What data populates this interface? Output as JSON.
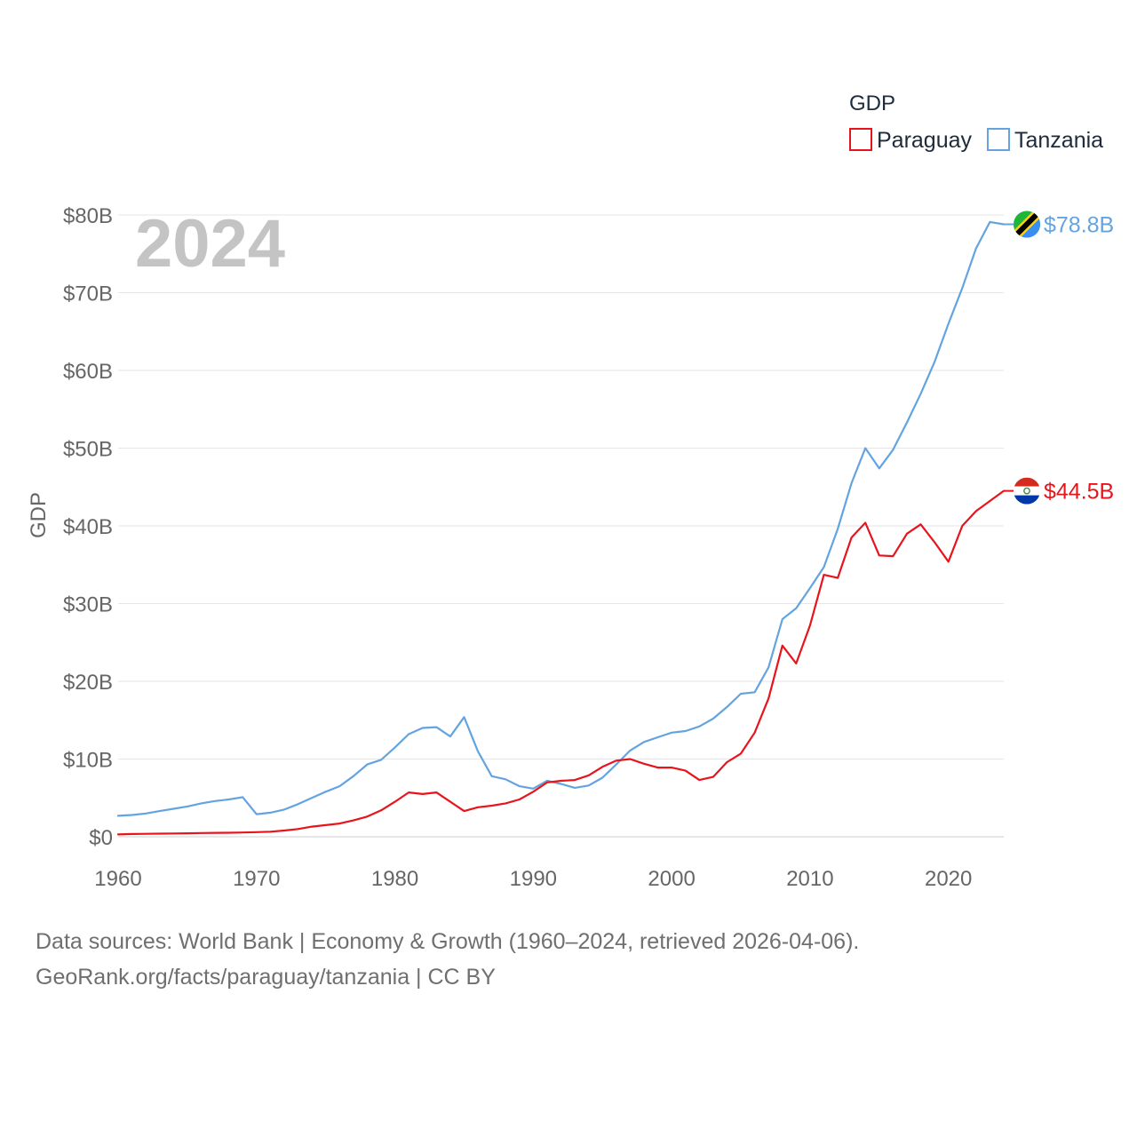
{
  "chart_data": {
    "type": "line",
    "title": "GDP",
    "year_label": "2024",
    "ylabel": "GDP",
    "xlabel": "",
    "xlim": [
      1960,
      2024
    ],
    "ylim": [
      0,
      80
    ],
    "x_ticks": [
      1960,
      1970,
      1980,
      1990,
      2000,
      2010,
      2020
    ],
    "y_ticks": [
      {
        "value": 0,
        "label": "$0"
      },
      {
        "value": 10,
        "label": "$10B"
      },
      {
        "value": 20,
        "label": "$20B"
      },
      {
        "value": 30,
        "label": "$30B"
      },
      {
        "value": 40,
        "label": "$40B"
      },
      {
        "value": 50,
        "label": "$50B"
      },
      {
        "value": 60,
        "label": "$60B"
      },
      {
        "value": 70,
        "label": "$70B"
      },
      {
        "value": 80,
        "label": "$80B"
      }
    ],
    "grid": true,
    "legend": {
      "title": "GDP",
      "position": "top-right"
    },
    "x": [
      1960,
      1961,
      1962,
      1963,
      1964,
      1965,
      1966,
      1967,
      1968,
      1969,
      1970,
      1971,
      1972,
      1973,
      1974,
      1975,
      1976,
      1977,
      1978,
      1979,
      1980,
      1981,
      1982,
      1983,
      1984,
      1985,
      1986,
      1987,
      1988,
      1989,
      1990,
      1991,
      1992,
      1993,
      1994,
      1995,
      1996,
      1997,
      1998,
      1999,
      2000,
      2001,
      2002,
      2003,
      2004,
      2005,
      2006,
      2007,
      2008,
      2009,
      2010,
      2011,
      2012,
      2013,
      2014,
      2015,
      2016,
      2017,
      2018,
      2019,
      2020,
      2021,
      2022,
      2023,
      2024
    ],
    "series": [
      {
        "name": "Paraguay",
        "color": "#e8141c",
        "end_label": "$44.5B",
        "flag": "paraguay-flag",
        "values": [
          0.3,
          0.35,
          0.38,
          0.4,
          0.42,
          0.45,
          0.48,
          0.5,
          0.52,
          0.55,
          0.6,
          0.65,
          0.8,
          1.0,
          1.3,
          1.5,
          1.7,
          2.1,
          2.6,
          3.4,
          4.5,
          5.7,
          5.5,
          5.7,
          4.5,
          3.3,
          3.8,
          4.0,
          4.3,
          4.8,
          5.8,
          7.0,
          7.2,
          7.3,
          7.9,
          9.0,
          9.8,
          10.0,
          9.4,
          8.9,
          8.9,
          8.5,
          7.3,
          7.7,
          9.6,
          10.7,
          13.4,
          17.8,
          24.6,
          22.3,
          27.2,
          33.7,
          33.3,
          38.5,
          40.4,
          36.2,
          36.1,
          39.0,
          40.2,
          37.9,
          35.4,
          40.0,
          41.9,
          43.2,
          44.5
        ]
      },
      {
        "name": "Tanzania",
        "color": "#63a4e0",
        "end_label": "$78.8B",
        "flag": "tanzania-flag",
        "values": [
          2.7,
          2.8,
          3.0,
          3.3,
          3.6,
          3.9,
          4.3,
          4.6,
          4.8,
          5.1,
          2.9,
          3.1,
          3.5,
          4.2,
          5.0,
          5.8,
          6.5,
          7.8,
          9.3,
          9.9,
          11.5,
          13.2,
          14.0,
          14.1,
          12.9,
          15.4,
          11.0,
          7.8,
          7.4,
          6.5,
          6.2,
          7.2,
          6.8,
          6.3,
          6.6,
          7.6,
          9.3,
          11.1,
          12.2,
          12.8,
          13.4,
          13.6,
          14.2,
          15.2,
          16.7,
          18.4,
          18.6,
          21.8,
          28.0,
          29.4,
          32.0,
          34.7,
          39.6,
          45.5,
          50.0,
          47.4,
          49.8,
          53.3,
          57.0,
          61.1,
          66.0,
          70.6,
          75.7,
          79.1,
          78.8
        ]
      }
    ]
  },
  "footer": {
    "line1": "Data sources: World Bank | Economy & Growth (1960–2024, retrieved 2026-04-06).",
    "line2": "GeoRank.org/facts/paraguay/tanzania | CC BY"
  }
}
